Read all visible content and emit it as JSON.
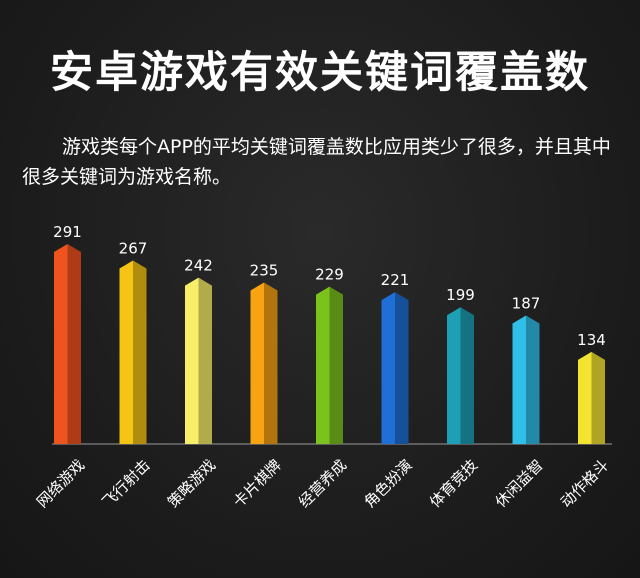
{
  "title": "安卓游戏有效关键词覆盖数",
  "description": "游戏类每个APP的平均关键词覆盖数比应用类少了很多，并且其中很多关键词为游戏名称。",
  "chart_data": {
    "type": "bar",
    "categories": [
      "网络游戏",
      "飞行射击",
      "策略游戏",
      "卡片棋牌",
      "经营养成",
      "角色扮演",
      "体育竞技",
      "休闲益智",
      "动作格斗"
    ],
    "values": [
      291,
      267,
      242,
      235,
      229,
      221,
      199,
      187,
      134
    ],
    "colors": [
      "#f0541e",
      "#f5c414",
      "#f7ee6a",
      "#f7a312",
      "#7cc21d",
      "#1f6fd6",
      "#1d9fb5",
      "#2fbfe9",
      "#f3e431"
    ],
    "ylim": [
      0,
      300
    ],
    "grid": false
  }
}
